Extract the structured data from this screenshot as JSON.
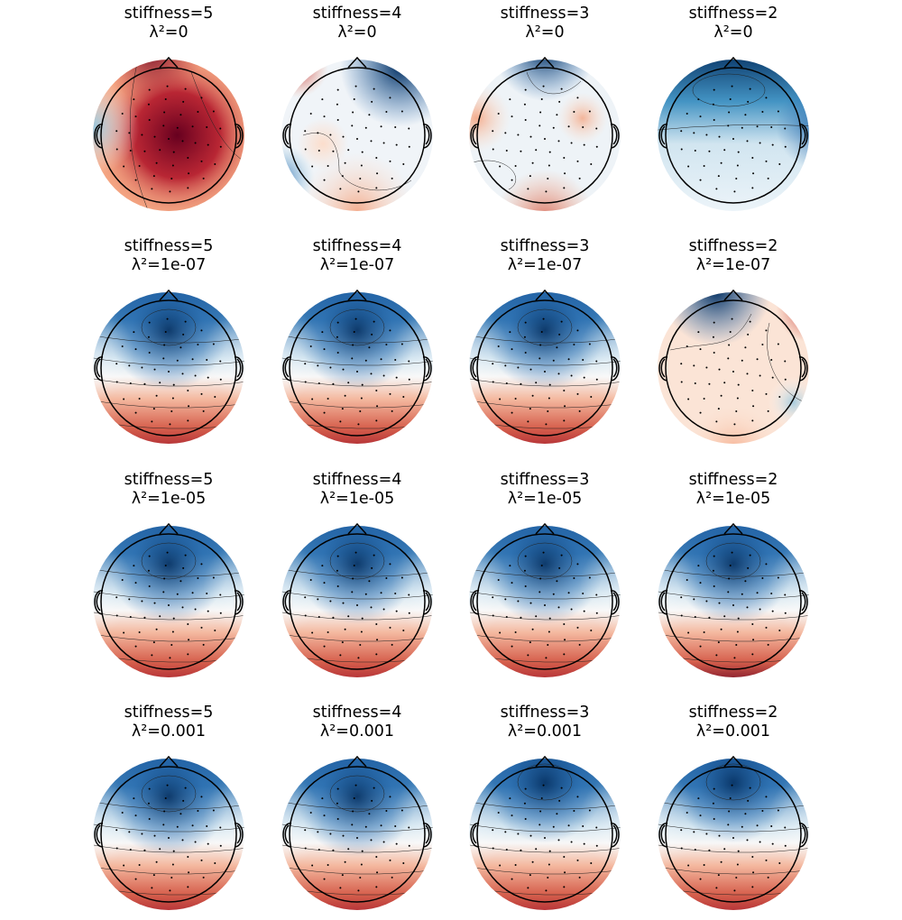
{
  "figure": {
    "panels": [
      {
        "stiffness_label": "stiffness=5",
        "lambda_label": "λ²=0"
      },
      {
        "stiffness_label": "stiffness=4",
        "lambda_label": "λ²=0"
      },
      {
        "stiffness_label": "stiffness=3",
        "lambda_label": "λ²=0"
      },
      {
        "stiffness_label": "stiffness=2",
        "lambda_label": "λ²=0"
      },
      {
        "stiffness_label": "stiffness=5",
        "lambda_label": "λ²=1e-07"
      },
      {
        "stiffness_label": "stiffness=4",
        "lambda_label": "λ²=1e-07"
      },
      {
        "stiffness_label": "stiffness=3",
        "lambda_label": "λ²=1e-07"
      },
      {
        "stiffness_label": "stiffness=2",
        "lambda_label": "λ²=1e-07"
      },
      {
        "stiffness_label": "stiffness=5",
        "lambda_label": "λ²=1e-05"
      },
      {
        "stiffness_label": "stiffness=4",
        "lambda_label": "λ²=1e-05"
      },
      {
        "stiffness_label": "stiffness=3",
        "lambda_label": "λ²=1e-05"
      },
      {
        "stiffness_label": "stiffness=2",
        "lambda_label": "λ²=1e-05"
      },
      {
        "stiffness_label": "stiffness=5",
        "lambda_label": "λ²=0.001"
      },
      {
        "stiffness_label": "stiffness=4",
        "lambda_label": "λ²=0.001"
      },
      {
        "stiffness_label": "stiffness=3",
        "lambda_label": "λ²=0.001"
      },
      {
        "stiffness_label": "stiffness=2",
        "lambda_label": "λ²=0.001"
      }
    ],
    "colormap": {
      "negative": "#053061",
      "mid": "#f7f7f7",
      "positive": "#67001f"
    }
  }
}
